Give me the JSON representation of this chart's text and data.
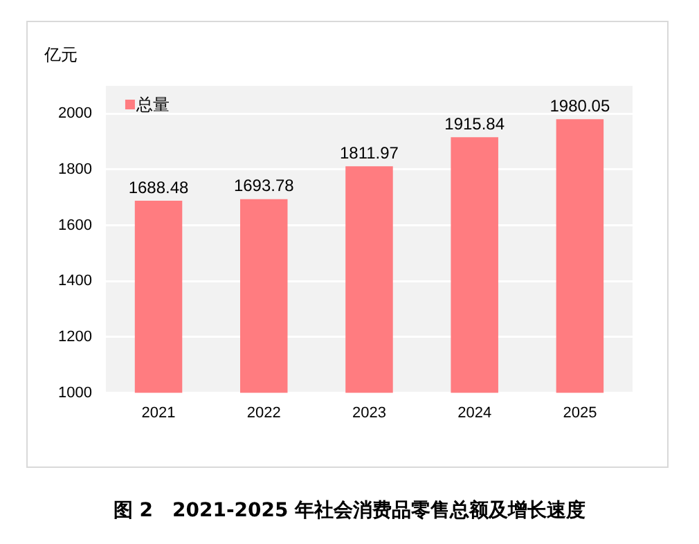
{
  "chart_data": {
    "type": "bar",
    "title": "图 2　2021-2025 年社会消费品零售总额及增长速度",
    "ylabel": "亿元",
    "categories": [
      "2021",
      "2022",
      "2023",
      "2024",
      "2025"
    ],
    "series": [
      {
        "name": "总量",
        "color": "#ff7c80",
        "values": [
          1688.48,
          1693.78,
          1811.97,
          1915.84,
          1980.05
        ]
      }
    ],
    "ylim": [
      1000,
      2100
    ],
    "yticks": [
      1000,
      1200,
      1400,
      1600,
      1800,
      2000
    ],
    "grid": "y",
    "legend": "top left",
    "data_labels": true
  }
}
